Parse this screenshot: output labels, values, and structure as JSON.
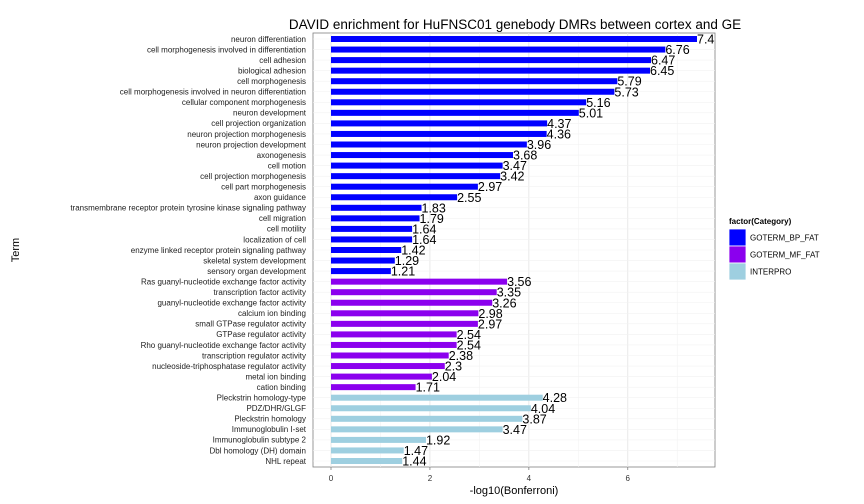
{
  "chart_data": {
    "type": "bar",
    "orientation": "horizontal",
    "title": "DAVID enrichment for HuFNSC01 genebody DMRs between cortex and GE",
    "xlabel": "-log10(Bonferroni)",
    "ylabel": "Term",
    "xlim": [
      0,
      7.8
    ],
    "xticks": [
      0,
      2,
      4,
      6
    ],
    "grid": true,
    "legend": {
      "title": "factor(Category)",
      "placement": "right",
      "entries": [
        {
          "name": "GOTERM_BP_FAT",
          "color": "#0000FF"
        },
        {
          "name": "GOTERM_MF_FAT",
          "color": "#8B00EE"
        },
        {
          "name": "INTERPRO",
          "color": "#9ECFE0"
        }
      ]
    },
    "bars": [
      {
        "term": "neuron differentiation",
        "value": 7.4,
        "label": "7.4",
        "category": "GOTERM_BP_FAT"
      },
      {
        "term": "cell morphogenesis involved in differentiation",
        "value": 6.76,
        "label": "6.76",
        "category": "GOTERM_BP_FAT"
      },
      {
        "term": "cell adhesion",
        "value": 6.47,
        "label": "6.47",
        "category": "GOTERM_BP_FAT"
      },
      {
        "term": "biological adhesion",
        "value": 6.45,
        "label": "6.45",
        "category": "GOTERM_BP_FAT"
      },
      {
        "term": "cell morphogenesis",
        "value": 5.79,
        "label": "5.79",
        "category": "GOTERM_BP_FAT"
      },
      {
        "term": "cell morphogenesis involved in neuron differentiation",
        "value": 5.73,
        "label": "5.73",
        "category": "GOTERM_BP_FAT"
      },
      {
        "term": "cellular component morphogenesis",
        "value": 5.16,
        "label": "5.16",
        "category": "GOTERM_BP_FAT"
      },
      {
        "term": "neuron development",
        "value": 5.01,
        "label": "5.01",
        "category": "GOTERM_BP_FAT"
      },
      {
        "term": "cell projection organization",
        "value": 4.37,
        "label": "4.37",
        "category": "GOTERM_BP_FAT"
      },
      {
        "term": "neuron projection morphogenesis",
        "value": 4.36,
        "label": "4.36",
        "category": "GOTERM_BP_FAT"
      },
      {
        "term": "neuron projection development",
        "value": 3.96,
        "label": "3.96",
        "category": "GOTERM_BP_FAT"
      },
      {
        "term": "axonogenesis",
        "value": 3.68,
        "label": "3.68",
        "category": "GOTERM_BP_FAT"
      },
      {
        "term": "cell motion",
        "value": 3.47,
        "label": "3.47",
        "category": "GOTERM_BP_FAT"
      },
      {
        "term": "cell projection morphogenesis",
        "value": 3.42,
        "label": "3.42",
        "category": "GOTERM_BP_FAT"
      },
      {
        "term": "cell part morphogenesis",
        "value": 2.97,
        "label": "2.97",
        "category": "GOTERM_BP_FAT"
      },
      {
        "term": "axon guidance",
        "value": 2.55,
        "label": "2.55",
        "category": "GOTERM_BP_FAT"
      },
      {
        "term": "transmembrane receptor protein tyrosine kinase signaling pathway",
        "value": 1.83,
        "label": "1.83",
        "category": "GOTERM_BP_FAT"
      },
      {
        "term": "cell migration",
        "value": 1.79,
        "label": "1.79",
        "category": "GOTERM_BP_FAT"
      },
      {
        "term": "cell motility",
        "value": 1.64,
        "label": "1.64",
        "category": "GOTERM_BP_FAT"
      },
      {
        "term": "localization of cell",
        "value": 1.64,
        "label": "1.64",
        "category": "GOTERM_BP_FAT"
      },
      {
        "term": "enzyme linked receptor protein signaling pathway",
        "value": 1.42,
        "label": "1.42",
        "category": "GOTERM_BP_FAT"
      },
      {
        "term": "skeletal system development",
        "value": 1.29,
        "label": "1.29",
        "category": "GOTERM_BP_FAT"
      },
      {
        "term": "sensory organ development",
        "value": 1.21,
        "label": "1.21",
        "category": "GOTERM_BP_FAT"
      },
      {
        "term": "Ras guanyl-nucleotide exchange factor activity",
        "value": 3.56,
        "label": "3.56",
        "category": "GOTERM_MF_FAT"
      },
      {
        "term": "transcription factor activity",
        "value": 3.35,
        "label": "3.35",
        "category": "GOTERM_MF_FAT"
      },
      {
        "term": "guanyl-nucleotide exchange factor activity",
        "value": 3.26,
        "label": "3.26",
        "category": "GOTERM_MF_FAT"
      },
      {
        "term": "calcium ion binding",
        "value": 2.98,
        "label": "2.98",
        "category": "GOTERM_MF_FAT"
      },
      {
        "term": "small GTPase regulator activity",
        "value": 2.97,
        "label": "2.97",
        "category": "GOTERM_MF_FAT"
      },
      {
        "term": "GTPase regulator activity",
        "value": 2.54,
        "label": "2.54",
        "category": "GOTERM_MF_FAT"
      },
      {
        "term": "Rho guanyl-nucleotide exchange factor activity",
        "value": 2.54,
        "label": "2.54",
        "category": "GOTERM_MF_FAT"
      },
      {
        "term": "transcription regulator activity",
        "value": 2.38,
        "label": "2.38",
        "category": "GOTERM_MF_FAT"
      },
      {
        "term": "nucleoside-triphosphatase regulator activity",
        "value": 2.3,
        "label": "2.3",
        "category": "GOTERM_MF_FAT"
      },
      {
        "term": "metal ion binding",
        "value": 2.04,
        "label": "2.04",
        "category": "GOTERM_MF_FAT"
      },
      {
        "term": "cation binding",
        "value": 1.71,
        "label": "1.71",
        "category": "GOTERM_MF_FAT"
      },
      {
        "term": "Pleckstrin homology-type",
        "value": 4.28,
        "label": "4.28",
        "category": "INTERPRO"
      },
      {
        "term": "PDZ/DHR/GLGF",
        "value": 4.04,
        "label": "4.04",
        "category": "INTERPRO"
      },
      {
        "term": "Pleckstrin homology",
        "value": 3.87,
        "label": "3.87",
        "category": "INTERPRO"
      },
      {
        "term": "Immunoglobulin I-set",
        "value": 3.47,
        "label": "3.47",
        "category": "INTERPRO"
      },
      {
        "term": "Immunoglobulin subtype 2",
        "value": 1.92,
        "label": "1.92",
        "category": "INTERPRO"
      },
      {
        "term": "Dbl homology (DH) domain",
        "value": 1.47,
        "label": "1.47",
        "category": "INTERPRO"
      },
      {
        "term": "NHL repeat",
        "value": 1.44,
        "label": "1.44",
        "category": "INTERPRO"
      }
    ]
  }
}
